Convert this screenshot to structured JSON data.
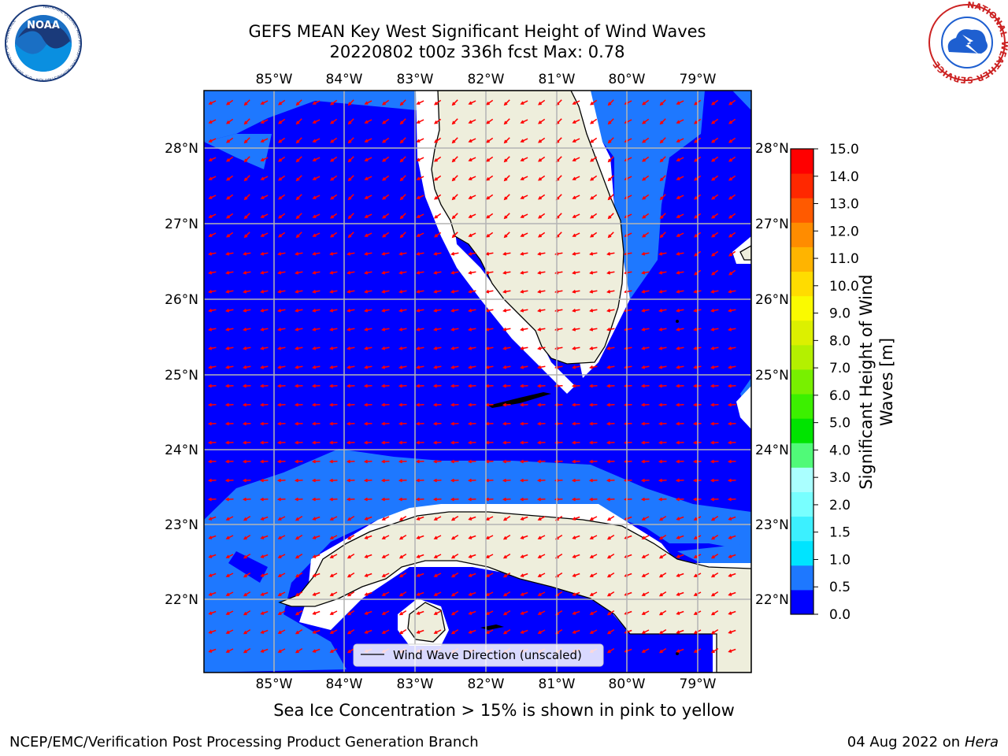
{
  "title_line1": "GEFS MEAN Key West Significant Height of Wind Waves",
  "title_line2": "20220802 t00z 336h fcst   Max: 0.78",
  "map": {
    "lon_ticks": [
      "85°W",
      "84°W",
      "83°W",
      "82°W",
      "81°W",
      "80°W",
      "79°W"
    ],
    "lat_ticks": [
      "28°N",
      "27°N",
      "26°N",
      "25°N",
      "24°N",
      "23°N",
      "22°N"
    ],
    "legend_label": "Wind Wave Direction (unscaled)",
    "arrow_color": "#ff0000",
    "land_color": "#eeeedc",
    "low_band_color": "#0000ff",
    "high_band_color": "#1e78ff"
  },
  "colorbar": {
    "label": "Significant Height of Wind Waves [m]",
    "tick_labels": [
      "0.0",
      "0.5",
      "1.0",
      "1.5",
      "2.0",
      "3.0",
      "4.0",
      "5.0",
      "6.0",
      "7.0",
      "8.0",
      "9.0",
      "10.0",
      "11.0",
      "12.0",
      "13.0",
      "14.0",
      "15.0"
    ],
    "colors": [
      "#0000ff",
      "#1e78ff",
      "#00e4ff",
      "#3cf0ff",
      "#78ffff",
      "#aaffff",
      "#50fa78",
      "#00e400",
      "#3cf000",
      "#78f000",
      "#b4f000",
      "#dcf000",
      "#fafa00",
      "#ffdc00",
      "#ffb400",
      "#ff8c00",
      "#ff5a00",
      "#ff2800",
      "#ff0000"
    ]
  },
  "note": "Sea Ice Concentration > 15% is shown in pink to yellow",
  "footer_left": "NCEP/EMC/Verification Post Processing Product Generation Branch",
  "footer_date": "04 Aug 2022 on",
  "footer_host": "Hera",
  "logos": {
    "noaa_text": "NOAA",
    "noaa_ring": "NATIONAL OCEANIC AND ATMOSPHERIC ADMINISTRATION · U.S. DEPARTMENT OF COMMERCE",
    "nws_ring": "NATIONAL WEATHER SERVICE"
  }
}
